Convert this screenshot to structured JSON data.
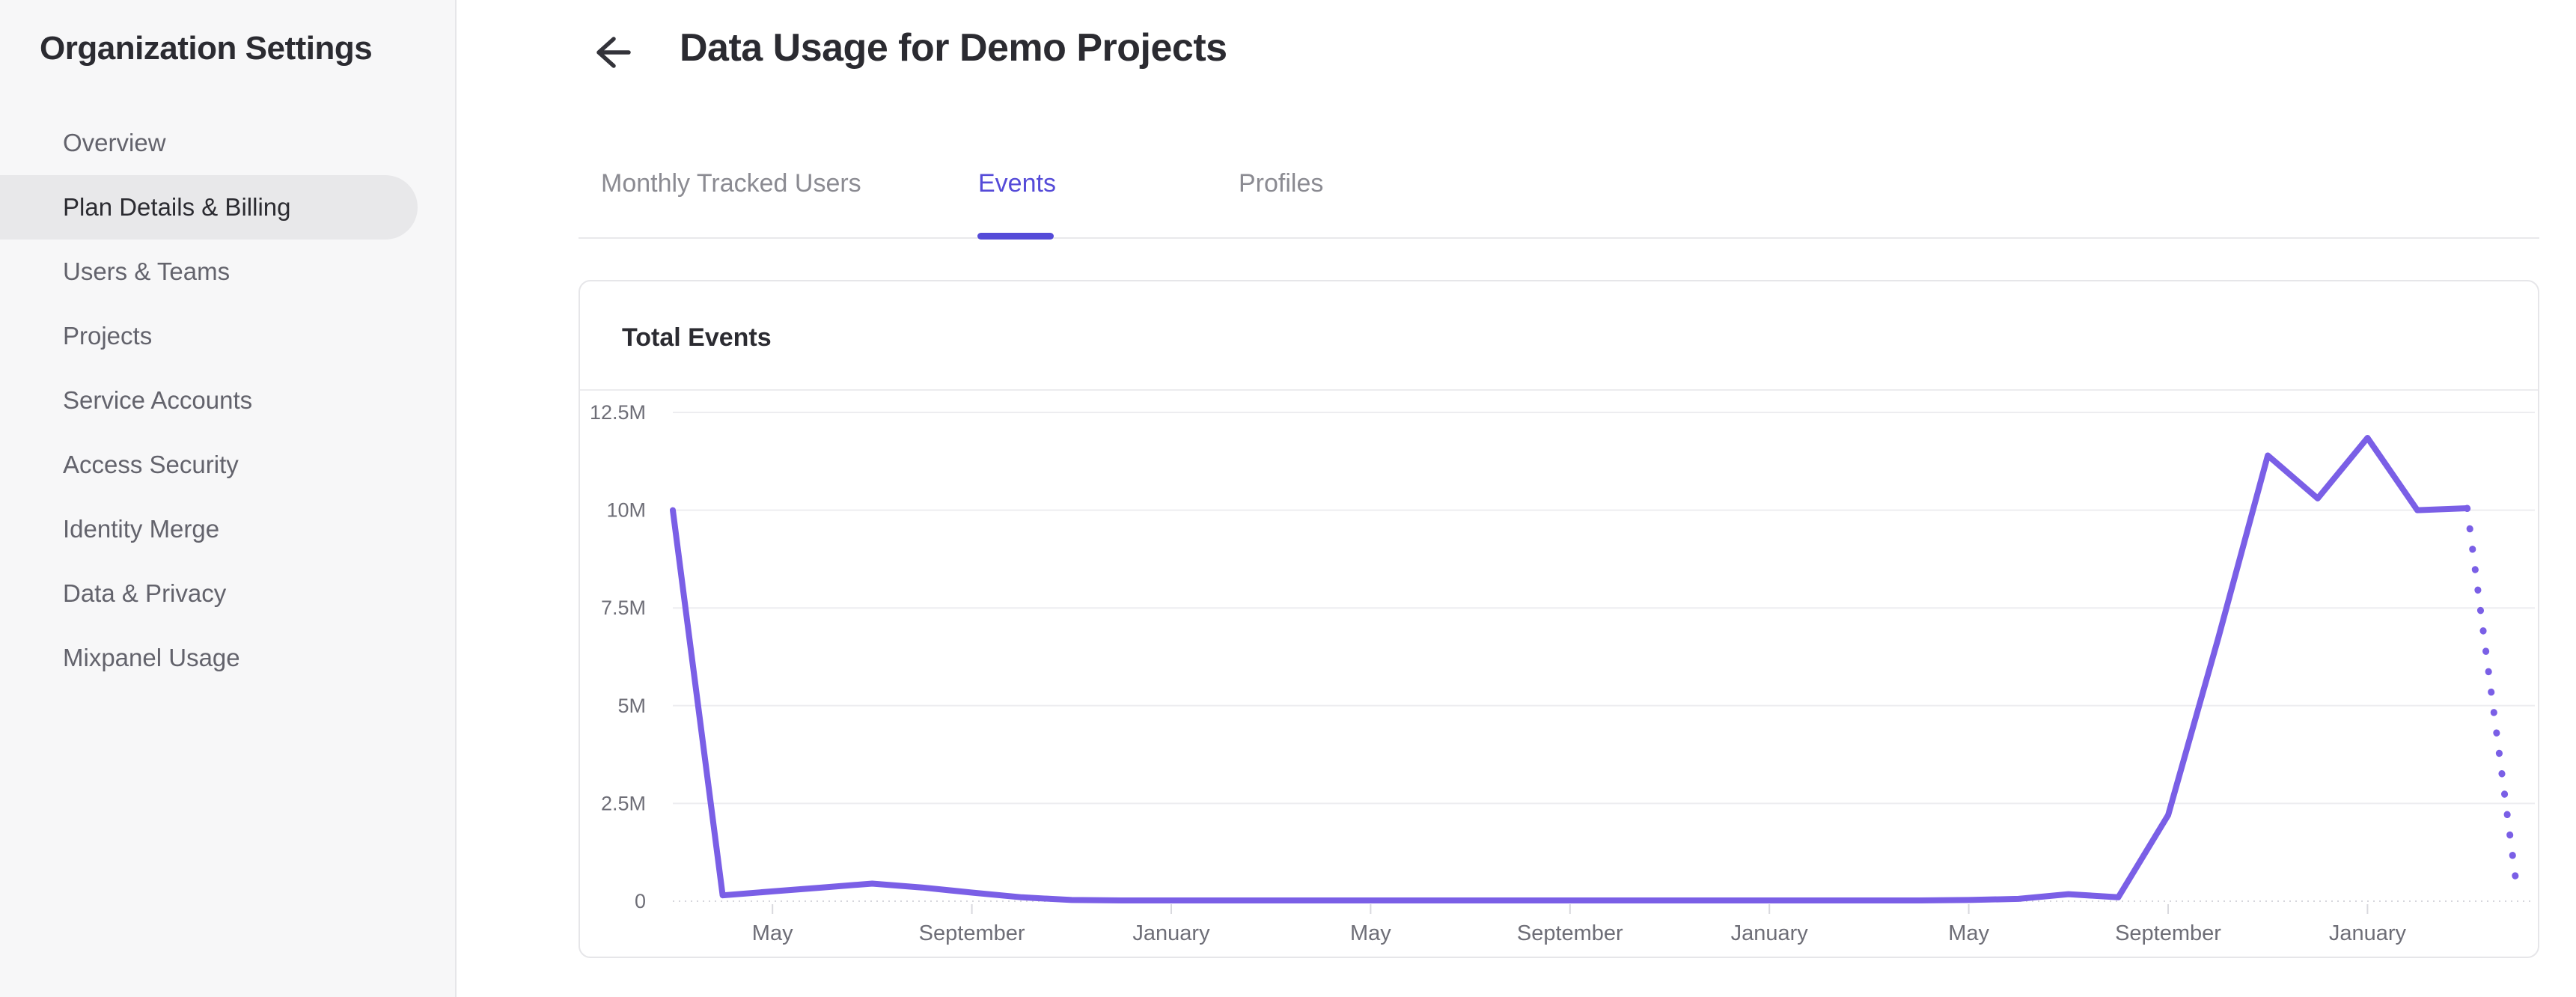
{
  "sidebar": {
    "heading": "Organization Settings",
    "items": [
      {
        "label": "Overview",
        "selected": false
      },
      {
        "label": "Plan Details & Billing",
        "selected": true
      },
      {
        "label": "Users & Teams",
        "selected": false
      },
      {
        "label": "Projects",
        "selected": false
      },
      {
        "label": "Service Accounts",
        "selected": false
      },
      {
        "label": "Access Security",
        "selected": false
      },
      {
        "label": "Identity Merge",
        "selected": false
      },
      {
        "label": "Data & Privacy",
        "selected": false
      },
      {
        "label": "Mixpanel Usage",
        "selected": false
      }
    ]
  },
  "header": {
    "title": "Data Usage for Demo Projects",
    "back_icon": "arrow-left-icon"
  },
  "tabs": [
    {
      "label": "Monthly Tracked Users",
      "active": false
    },
    {
      "label": "Events",
      "active": true
    },
    {
      "label": "Profiles",
      "active": false
    }
  ],
  "card": {
    "title": "Total Events"
  },
  "colors": {
    "accent": "#554bd8",
    "line": "#7a5fe6",
    "tab_inactive": "#8b8b92",
    "text_dark": "#2b2b31",
    "sidebar_selected_bg": "#e8e8ea",
    "gridline": "#ededf0",
    "axis_label": "#6e6e77"
  },
  "chart_data": {
    "type": "line",
    "title": "Total Events",
    "ylabel": "",
    "xlabel": "",
    "grid": "horizontal",
    "legend_position": "none",
    "y_tick_labels": [
      "12.5M",
      "10M",
      "7.5M",
      "5M",
      "2.5M",
      "0"
    ],
    "y_tick_values_millions": [
      12.5,
      10,
      7.5,
      5,
      2.5,
      0
    ],
    "ylim_millions": [
      0,
      12.5
    ],
    "x_tick_labels": [
      "May",
      "September",
      "January",
      "May",
      "September",
      "January",
      "May",
      "September",
      "January"
    ],
    "x_tick_point_indices": [
      2,
      6,
      10,
      14,
      18,
      22,
      26,
      30,
      34
    ],
    "series": [
      {
        "name": "Total Events",
        "cadence": "monthly",
        "unit": "millions of events",
        "values_millions": [
          10.0,
          0.15,
          0.25,
          0.35,
          0.45,
          0.35,
          0.22,
          0.1,
          0.03,
          0.02,
          0.02,
          0.02,
          0.02,
          0.02,
          0.02,
          0.02,
          0.02,
          0.02,
          0.02,
          0.02,
          0.02,
          0.02,
          0.02,
          0.02,
          0.02,
          0.02,
          0.03,
          0.06,
          0.18,
          0.1,
          2.2,
          6.7,
          11.4,
          10.3,
          11.85,
          10.0,
          10.05,
          0.3
        ],
        "projected_tail_points": 1,
        "line_style_solid": "solid",
        "line_style_tail": "dotted"
      }
    ]
  }
}
